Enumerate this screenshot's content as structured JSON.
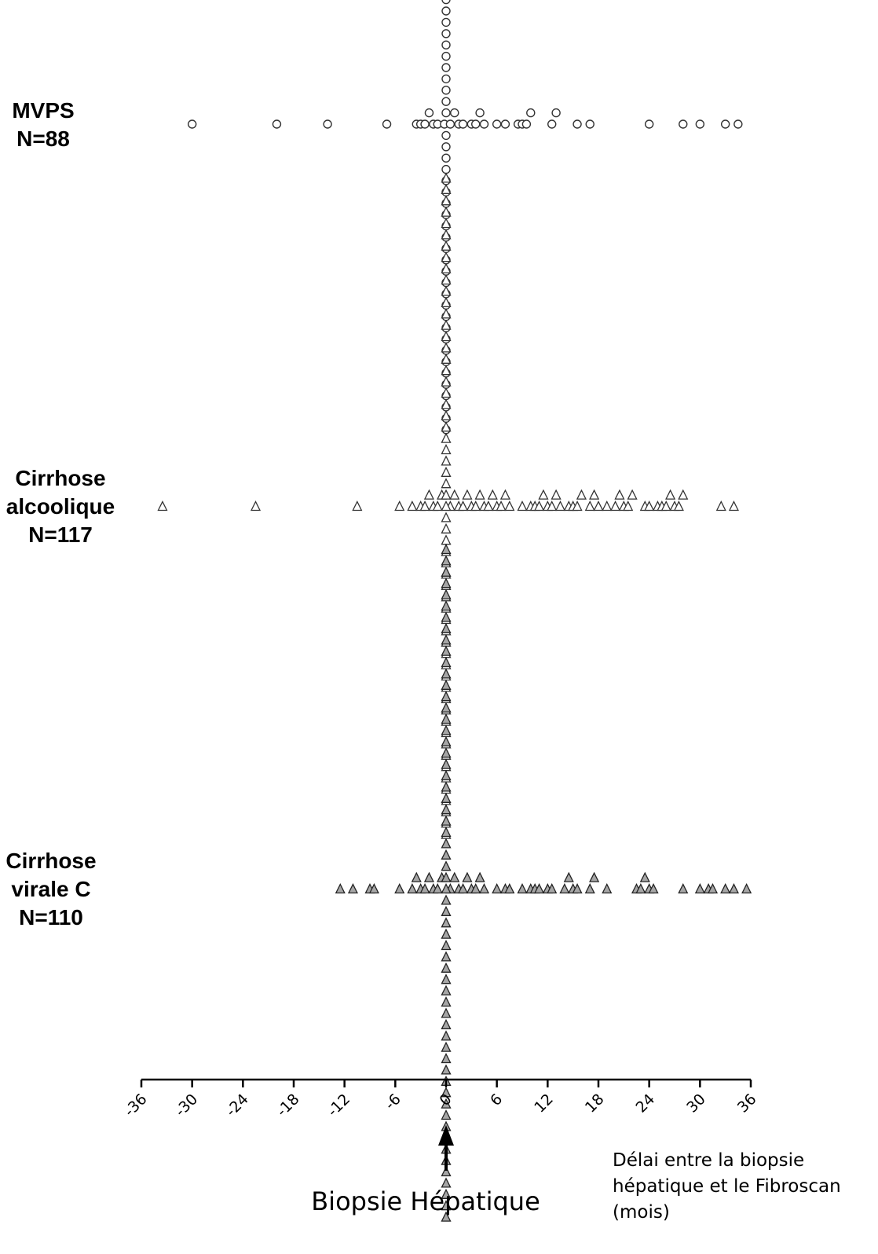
{
  "chart_data": {
    "type": "scatter",
    "chart_style": "dot-plot",
    "xlim": [
      -36,
      36
    ],
    "x_ticks": [
      -36,
      -30,
      -24,
      -18,
      -12,
      -6,
      0,
      6,
      12,
      18,
      24,
      30,
      36
    ],
    "x_tick_labels": [
      "-36",
      "-30",
      "-24",
      "-18",
      "-12",
      "-6",
      "0",
      "6",
      "12",
      "18",
      "24",
      "30",
      "36"
    ],
    "xlabel_lines": [
      "Délai entre la biopsie",
      "hépatique et le Fibroscan",
      "(mois)"
    ],
    "reference": {
      "x": 0,
      "label": "Biopsie Hépatique",
      "marker": "up-arrow"
    },
    "grid": false,
    "legend": "none",
    "series": [
      {
        "label_lines": [
          "MVPS",
          "N=88"
        ],
        "marker": "circle",
        "fill": "#ffffff",
        "stroke": "#333333",
        "x": [
          -30,
          -20,
          -14,
          -7,
          -3.5,
          -3,
          -2.5,
          -2,
          -1.5,
          -1,
          -0.2,
          0.5,
          1,
          1.5,
          2,
          3,
          3.5,
          4,
          4.5,
          6,
          7,
          8.5,
          9,
          9.5,
          10,
          12.5,
          13,
          15.5,
          17,
          24,
          28,
          30,
          33,
          34.5,
          0,
          0,
          0,
          0,
          0,
          0,
          0,
          0,
          0,
          0,
          0,
          0,
          0,
          0,
          0,
          0,
          0,
          0,
          0,
          0,
          0,
          0,
          0,
          0,
          0,
          0,
          0,
          0,
          0,
          0,
          0,
          0,
          0,
          0,
          0,
          0,
          0,
          0,
          0,
          0,
          0,
          0,
          0,
          0,
          0,
          0,
          0,
          0,
          0,
          0,
          0,
          0,
          0,
          0
        ]
      },
      {
        "label_lines": [
          "Cirrhose",
          "alcoolique",
          "N=117"
        ],
        "marker": "triangle",
        "fill": "#ffffff",
        "stroke": "#333333",
        "x": [
          -33.5,
          -22.5,
          -10.5,
          -5.5,
          -4,
          -3,
          -2.5,
          -2,
          -1.5,
          -1,
          -0.5,
          0.5,
          1,
          1.5,
          2,
          2.5,
          3,
          3.5,
          4,
          4.5,
          5,
          5.5,
          6,
          6.5,
          7,
          7.5,
          9,
          10,
          10.5,
          11,
          11.5,
          12,
          12.5,
          13,
          13.5,
          14.5,
          15,
          15.5,
          16,
          17,
          17.5,
          18,
          19,
          20,
          20.5,
          21,
          21.5,
          22,
          23.5,
          24,
          25,
          25.5,
          26,
          26.5,
          27,
          27.5,
          28,
          32.5,
          34,
          0,
          0,
          0,
          0,
          0,
          0,
          0,
          0,
          0,
          0,
          0,
          0,
          0,
          0,
          0,
          0,
          0,
          0,
          0,
          0,
          0,
          0,
          0,
          0,
          0,
          0,
          0,
          0,
          0,
          0,
          0,
          0,
          0,
          0,
          0,
          0,
          0,
          0,
          0,
          0,
          0,
          0,
          0,
          0,
          0,
          0,
          0,
          0,
          0,
          0,
          0,
          0,
          0,
          0,
          0,
          0,
          0,
          0,
          0
        ]
      },
      {
        "label_lines": [
          "Cirrhose",
          "virale C",
          "N=110"
        ],
        "marker": "triangle",
        "fill": "#a6a6a6",
        "stroke": "#222222",
        "x": [
          -12.5,
          -11,
          -9,
          -8.5,
          -5.5,
          -4,
          -3.5,
          -3,
          -2.5,
          -2,
          -1.5,
          -1,
          -0.5,
          0.5,
          1,
          1.5,
          2,
          2.5,
          3,
          3.5,
          4,
          4.5,
          6,
          7,
          7.5,
          9,
          10,
          10.5,
          11,
          12,
          12.5,
          14,
          14.5,
          15,
          15.5,
          17,
          17.5,
          19,
          22.5,
          23,
          23.5,
          24,
          24.5,
          28,
          30,
          31,
          31.5,
          33,
          34,
          35.5,
          0,
          0,
          0,
          0,
          0,
          0,
          0,
          0,
          0,
          0,
          0,
          0,
          0,
          0,
          0,
          0,
          0,
          0,
          0,
          0,
          0,
          0,
          0,
          0,
          0,
          0,
          0,
          0,
          0,
          0,
          0,
          0,
          0,
          0,
          0,
          0,
          0,
          0,
          0,
          0,
          0,
          0,
          0,
          0,
          0,
          0,
          0,
          0,
          0,
          0,
          0,
          0,
          0,
          0,
          0,
          0,
          0,
          0,
          0,
          0
        ]
      }
    ]
  }
}
